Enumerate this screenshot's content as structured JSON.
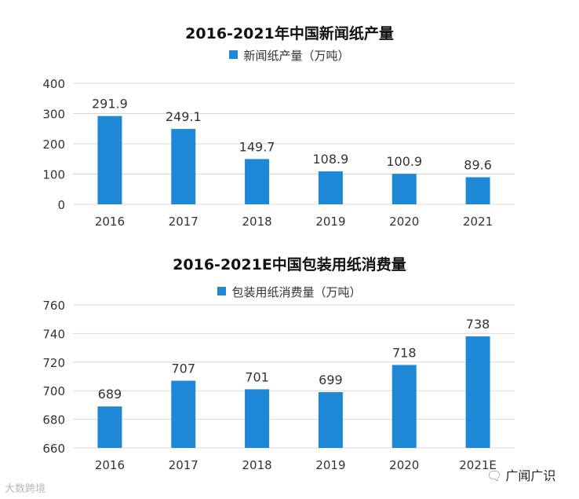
{
  "colors": {
    "bar": "#1E88D6",
    "grid": "#d9d9d9",
    "text": "#333333"
  },
  "watermark": "大数跨境",
  "brand": {
    "icon": "wechat-bubble-icon",
    "name": "广闻广识"
  },
  "chart_data": [
    {
      "type": "bar",
      "title": "2016-2021年中国新闻纸产量",
      "legend": "新闻纸产量（万吨）",
      "legend_position": "top-center",
      "categories": [
        "2016",
        "2017",
        "2018",
        "2019",
        "2020",
        "2021"
      ],
      "values": [
        291.9,
        249.1,
        149.7,
        108.9,
        100.9,
        89.6
      ],
      "value_labels": [
        "291.9",
        "249.1",
        "149.7",
        "108.9",
        "100.9",
        "89.6"
      ],
      "ylim": [
        0,
        400
      ],
      "yticks": [
        0,
        100,
        200,
        300,
        400
      ],
      "grid": true
    },
    {
      "type": "bar",
      "title": "2016-2021E中国包装用纸消费量",
      "legend": "包装用纸消费量（万吨）",
      "legend_position": "top-center",
      "categories": [
        "2016",
        "2017",
        "2018",
        "2019",
        "2020",
        "2021E"
      ],
      "values": [
        689,
        707,
        701,
        699,
        718,
        738
      ],
      "value_labels": [
        "689",
        "707",
        "701",
        "699",
        "718",
        "738"
      ],
      "ylim": [
        660,
        760
      ],
      "yticks": [
        660,
        680,
        700,
        720,
        740,
        760
      ],
      "grid": true
    }
  ]
}
